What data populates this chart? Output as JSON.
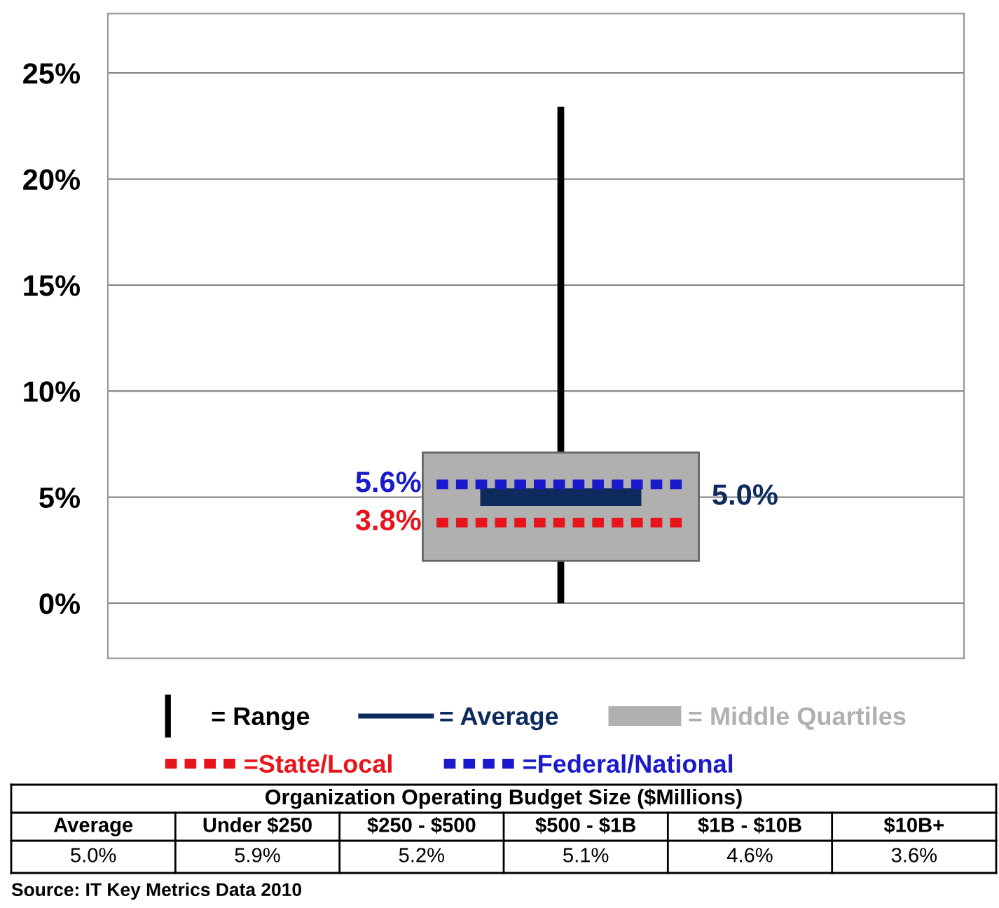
{
  "chart_data": [
    {
      "type": "box",
      "categories": [
        null
      ],
      "ylim": [
        -2.6,
        27.8
      ],
      "yticks": [
        {
          "value": 0,
          "label": "0%"
        },
        {
          "value": 5,
          "label": "5%"
        },
        {
          "value": 10,
          "label": "10%"
        },
        {
          "value": 15,
          "label": "15%"
        },
        {
          "value": 20,
          "label": "20%"
        },
        {
          "value": 25,
          "label": "25%"
        }
      ],
      "grid": "y",
      "legend": "bottom",
      "series": [
        {
          "type": "box",
          "name": "= Middle Quartiles",
          "color": "#b0b0b0",
          "boxes": [
            {
              "low": 0,
              "q1": 2.0,
              "q3": 7.1,
              "high": 23.4
            }
          ]
        }
      ],
      "ref_lines": [
        {
          "axis": "y",
          "value": 5.0,
          "label": "5.0%",
          "color": "#0d2b5c",
          "line_style": "solid"
        },
        {
          "axis": "y",
          "value": 3.8,
          "label": "3.8%",
          "color": "#e8141b",
          "line_style": "dotted"
        },
        {
          "axis": "y",
          "value": 5.6,
          "label": "5.6%",
          "color": "#1a1acc",
          "line_style": "dotted"
        }
      ],
      "annotations": [
        "= Range",
        "= Average",
        "=State/Local",
        "=Federal/National"
      ]
    },
    {
      "type": "other",
      "title": "Organization Operating Budget Size ($Millions)",
      "categories": [
        "Average",
        "Under $250",
        "$250 - $500",
        "$500 - $1B",
        "$1B - $10B",
        "$10B+"
      ],
      "value_labels": [
        "5.0%",
        "5.9%",
        "5.2%",
        "5.1%",
        "4.6%",
        "3.6%"
      ],
      "annotations": [
        "Source: IT Key Metrics Data 2010"
      ]
    }
  ]
}
